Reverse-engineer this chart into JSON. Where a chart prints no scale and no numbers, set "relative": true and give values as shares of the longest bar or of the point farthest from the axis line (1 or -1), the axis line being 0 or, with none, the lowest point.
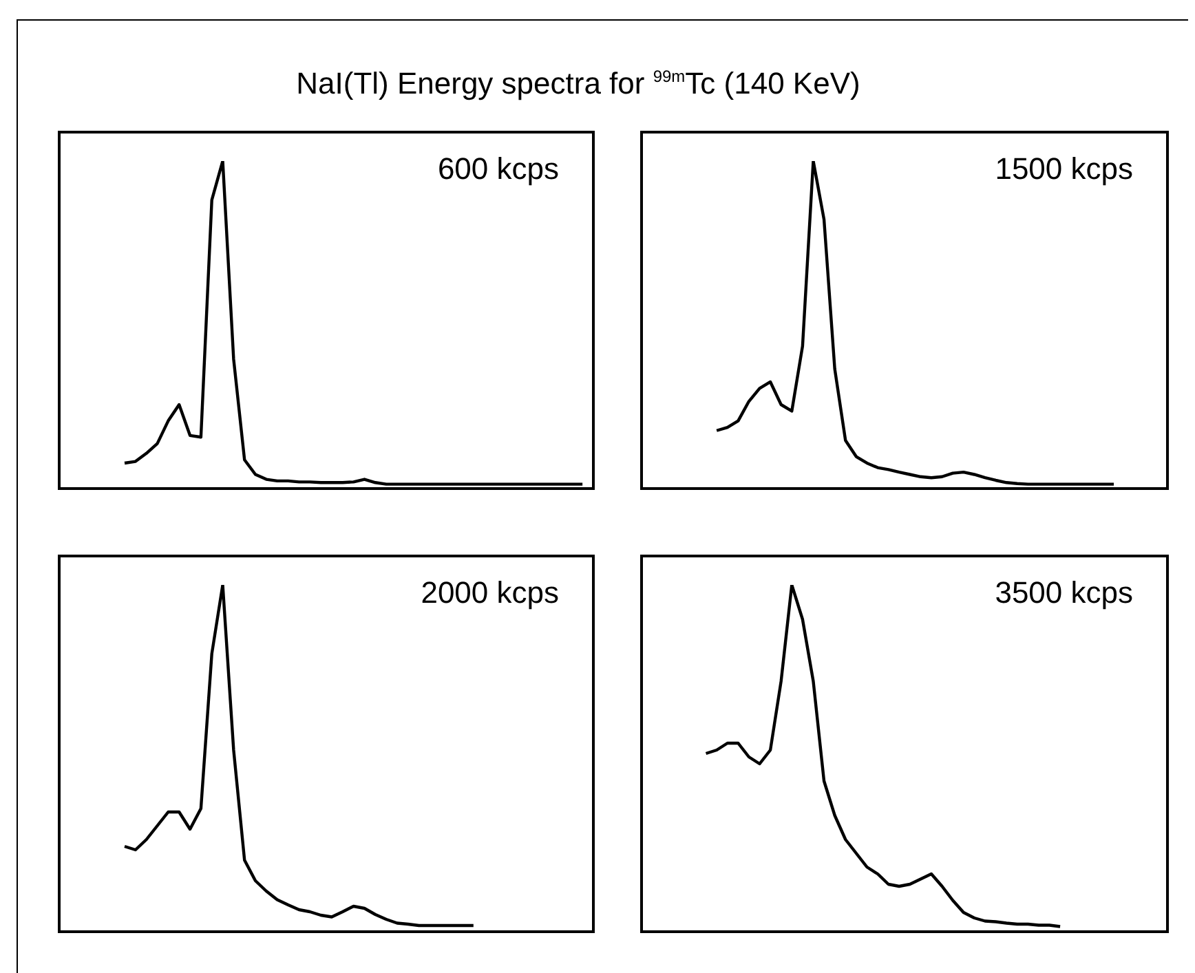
{
  "chart_data": [
    {
      "type": "line",
      "title": "NaI(Tl) Energy spectra for $^{99m}$Tc (140 KeV)",
      "relative": true,
      "annotations": [
        "600 kcps"
      ],
      "categories": [
        null,
        null,
        null,
        null,
        null,
        null,
        null,
        null,
        null,
        null,
        null,
        null,
        null,
        null,
        null,
        null,
        null,
        null,
        null,
        null,
        null,
        null,
        null,
        null,
        null,
        null,
        null,
        null,
        null,
        null,
        null,
        null,
        null,
        null,
        null,
        null,
        null,
        null,
        null,
        null,
        null,
        null,
        null,
        null,
        null,
        null,
        null,
        null,
        null,
        null
      ],
      "series": [
        {
          "color": "#000000",
          "values": [
            null,
            null,
            null,
            null,
            null,
            null,
            0.07,
            0.075,
            0.1,
            0.13,
            0.2,
            0.25,
            0.155,
            0.15,
            0.88,
            1.0,
            0.39,
            0.08,
            0.035,
            0.02,
            0.015,
            0.015,
            0.012,
            0.012,
            0.01,
            0.01,
            0.01,
            0.012,
            0.02,
            0.01,
            0.005,
            0.005,
            0.005,
            0.005,
            0.005,
            0.005,
            0.005,
            0.005,
            0.005,
            0.005,
            0.005,
            0.005,
            0.005,
            0.005,
            0.005,
            0.005,
            0.005,
            0.005,
            0.005,
            null
          ]
        }
      ]
    },
    {
      "type": "line",
      "relative": true,
      "annotations": [
        "1500 kcps"
      ],
      "categories": [
        null,
        null,
        null,
        null,
        null,
        null,
        null,
        null,
        null,
        null,
        null,
        null,
        null,
        null,
        null,
        null,
        null,
        null,
        null,
        null,
        null,
        null,
        null,
        null,
        null,
        null,
        null,
        null,
        null,
        null,
        null,
        null,
        null,
        null,
        null,
        null,
        null,
        null,
        null,
        null,
        null,
        null,
        null,
        null,
        null,
        null,
        null,
        null,
        null,
        null
      ],
      "series": [
        {
          "color": "#000000",
          "values": [
            null,
            null,
            null,
            null,
            null,
            null,
            null,
            0.17,
            0.18,
            0.2,
            0.26,
            0.3,
            0.32,
            0.25,
            0.23,
            0.43,
            1.0,
            0.82,
            0.36,
            0.14,
            0.09,
            0.07,
            0.056,
            0.05,
            0.042,
            0.035,
            0.028,
            0.025,
            0.028,
            0.039,
            0.042,
            0.035,
            0.025,
            0.017,
            0.01,
            0.007,
            0.005,
            0.005,
            0.005,
            0.005,
            0.005,
            0.005,
            0.005,
            0.005,
            0.005,
            null,
            null,
            null,
            null,
            null
          ]
        }
      ]
    },
    {
      "type": "line",
      "relative": true,
      "annotations": [
        "2000 kcps"
      ],
      "categories": [
        null,
        null,
        null,
        null,
        null,
        null,
        null,
        null,
        null,
        null,
        null,
        null,
        null,
        null,
        null,
        null,
        null,
        null,
        null,
        null,
        null,
        null,
        null,
        null,
        null,
        null,
        null,
        null,
        null,
        null,
        null,
        null,
        null,
        null,
        null,
        null,
        null,
        null,
        null,
        null,
        null,
        null,
        null,
        null,
        null,
        null,
        null,
        null,
        null,
        null
      ],
      "series": [
        {
          "color": "#000000",
          "values": [
            null,
            null,
            null,
            null,
            null,
            null,
            0.24,
            0.23,
            0.26,
            0.3,
            0.34,
            0.34,
            0.29,
            0.35,
            0.8,
            1.0,
            0.52,
            0.2,
            0.14,
            0.11,
            0.085,
            0.07,
            0.056,
            0.05,
            0.04,
            0.035,
            0.05,
            0.066,
            0.06,
            0.042,
            0.028,
            0.017,
            0.014,
            0.01,
            0.01,
            0.01,
            0.01,
            0.01,
            0.01,
            null,
            null,
            null,
            null,
            null,
            null,
            null,
            null,
            null,
            null,
            null
          ]
        }
      ]
    },
    {
      "type": "line",
      "relative": true,
      "annotations": [
        "3500 kcps"
      ],
      "categories": [
        null,
        null,
        null,
        null,
        null,
        null,
        null,
        null,
        null,
        null,
        null,
        null,
        null,
        null,
        null,
        null,
        null,
        null,
        null,
        null,
        null,
        null,
        null,
        null,
        null,
        null,
        null,
        null,
        null,
        null,
        null,
        null,
        null,
        null,
        null,
        null,
        null,
        null,
        null,
        null,
        null,
        null,
        null,
        null,
        null,
        null,
        null,
        null,
        null,
        null
      ],
      "series": [
        {
          "color": "#000000",
          "values": [
            null,
            null,
            null,
            null,
            null,
            null,
            0.51,
            0.52,
            0.54,
            0.54,
            0.5,
            0.48,
            0.52,
            0.72,
            1.0,
            0.9,
            0.72,
            0.43,
            0.33,
            0.26,
            0.22,
            0.18,
            0.16,
            0.13,
            0.124,
            0.13,
            0.145,
            0.16,
            0.124,
            0.083,
            0.048,
            0.032,
            0.023,
            0.021,
            0.017,
            0.014,
            0.014,
            0.011,
            0.011,
            0.007,
            null,
            null,
            null,
            null,
            null,
            null,
            null,
            null,
            null,
            null
          ]
        }
      ]
    }
  ]
}
